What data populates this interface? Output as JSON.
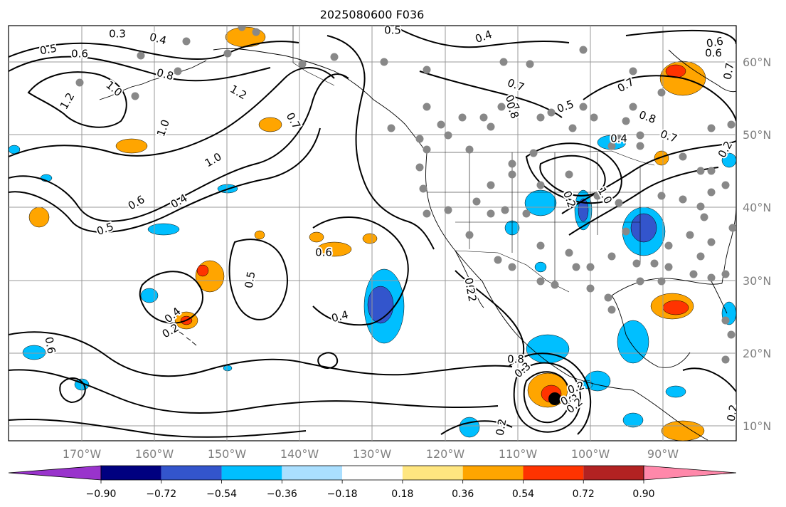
{
  "title": "2025080600 F036",
  "longitude_labels": [
    "170°W",
    "160°W",
    "150°W",
    "140°W",
    "130°W",
    "120°W",
    "110°W",
    "100°W",
    "90°W"
  ],
  "latitude_labels": [
    "60°N",
    "50°N",
    "40°N",
    "30°N",
    "20°N",
    "10°N"
  ],
  "colorbar": {
    "tick_labels": [
      "−0.90",
      "−0.72",
      "−0.54",
      "−0.36",
      "−0.18",
      "0.18",
      "0.36",
      "0.54",
      "0.72",
      "0.90"
    ],
    "colors": [
      "#9933cc",
      "#000080",
      "#3355cc",
      "#00bfff",
      "#aadfff",
      "#ffffff",
      "#ffe680",
      "#ffa500",
      "#ff3300",
      "#b22222",
      "#ff88aa"
    ]
  },
  "contour_labels": [
    "0.3",
    "0.4",
    "0.5",
    "0.6",
    "0.8",
    "0.5",
    "0.4",
    "1.2",
    "1.0",
    "0.6",
    "1.2",
    "1.0",
    "0.7",
    "1.0",
    "0.7",
    "0.7",
    "0.6",
    "0.4",
    "0.5",
    "0.6",
    "0.5",
    "0.4",
    "0.6",
    "0.2",
    "0.7",
    "0.8",
    "0.5",
    "0.6",
    "0.8",
    "0.7",
    "0.4",
    "0.8",
    "1.0",
    "0.3",
    "0.2",
    "0.2",
    "0.4",
    "0.3",
    "0.2",
    "0.2",
    "0.2",
    "0.2",
    "0.2",
    "0.7",
    "0.2"
  ],
  "colors": {
    "contour": "#000000",
    "grid": "#999999",
    "station_dots": "#888888",
    "cyclone_marker": "#000000"
  }
}
